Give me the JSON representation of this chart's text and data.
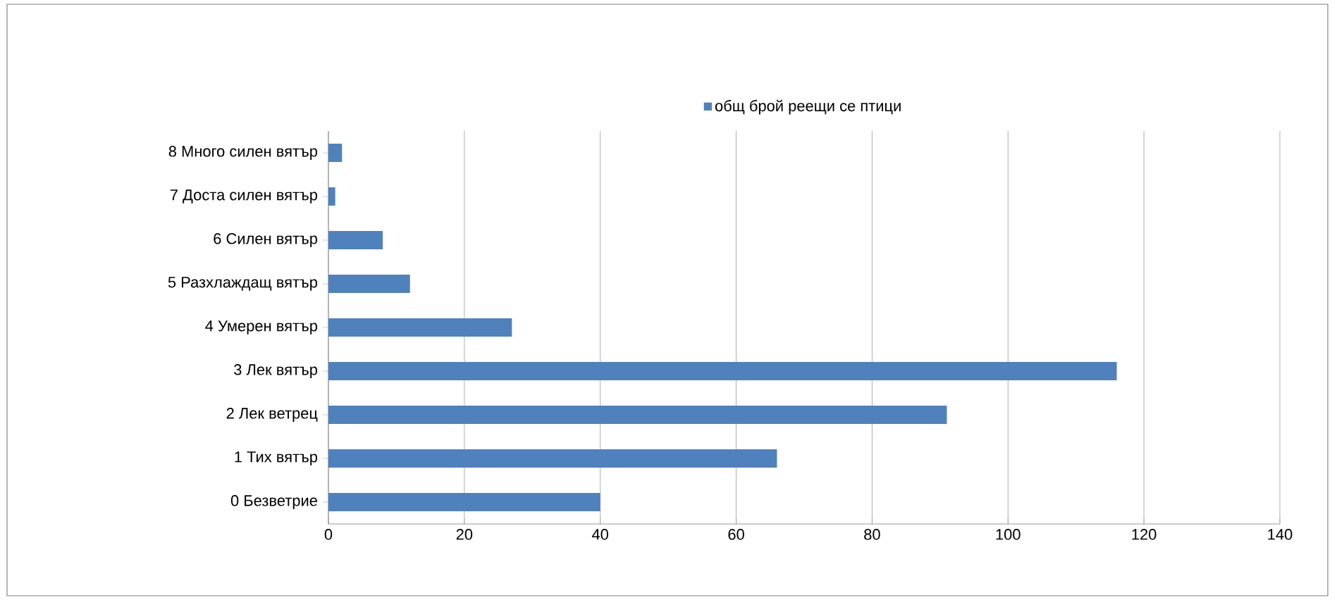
{
  "chart_data": {
    "type": "bar",
    "orientation": "horizontal",
    "categories": [
      "8 Много силен вятър",
      "7 Доста силен вятър",
      "6 Силен вятър",
      "5 Разхлаждащ вятър",
      "4 Умерен вятър",
      "3 Лек вятър",
      "2 Лек ветрец",
      "1 Тих вятър",
      "0 Безветрие"
    ],
    "series": [
      {
        "name": "общ брой реещи се птици",
        "color": "#4f81bd",
        "values": [
          2,
          1,
          8,
          12,
          27,
          116,
          91,
          66,
          40
        ]
      }
    ],
    "xlim": [
      0,
      140
    ],
    "xticks": [
      0,
      20,
      40,
      60,
      80,
      100,
      120,
      140
    ],
    "grid": "x",
    "legend": "top"
  }
}
